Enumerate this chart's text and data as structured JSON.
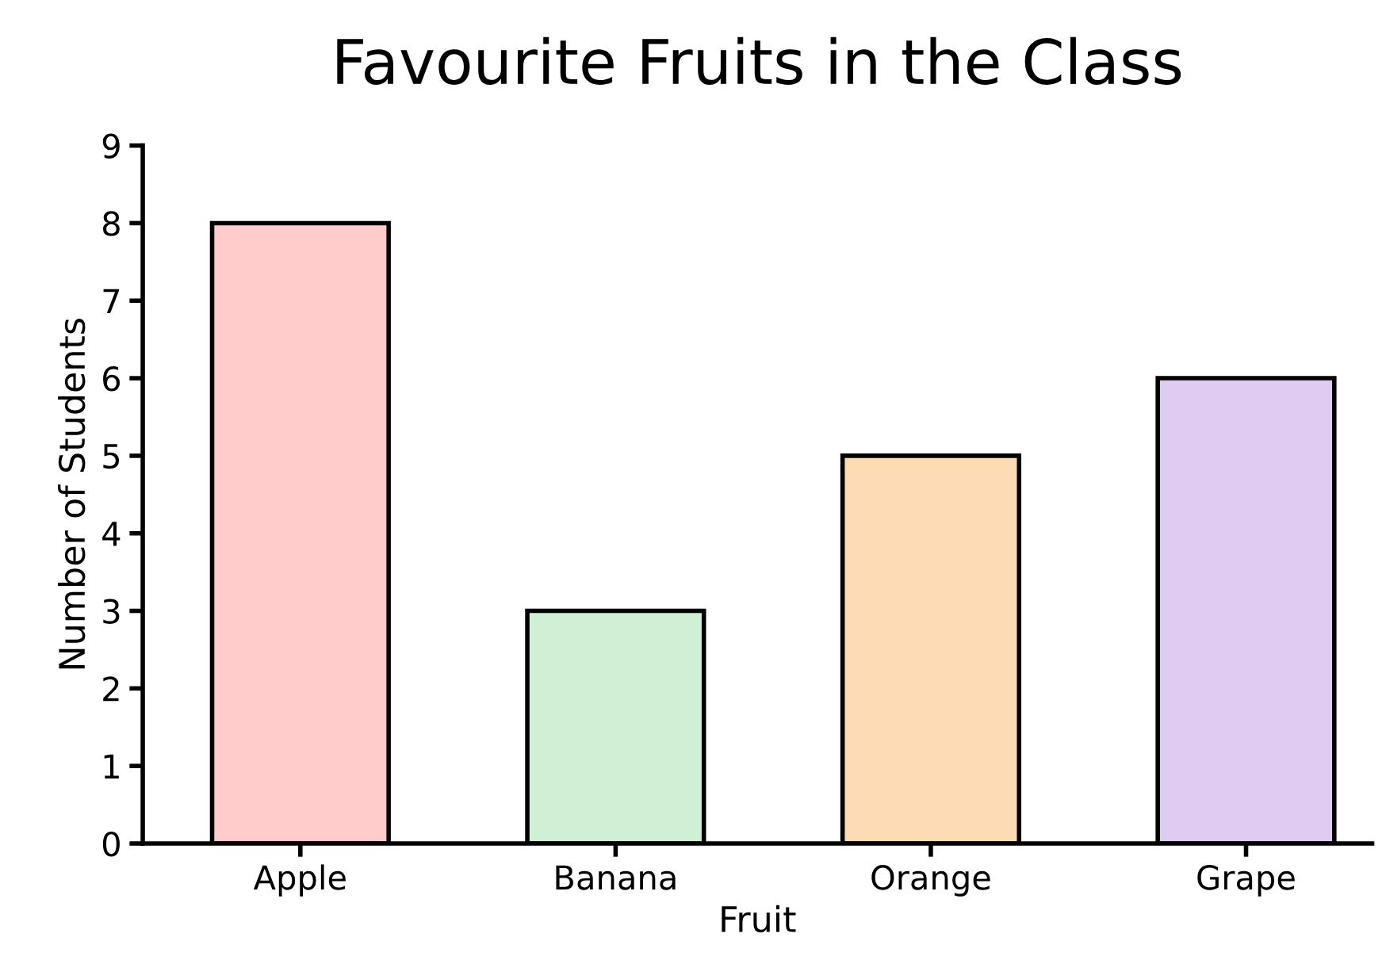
{
  "chart_data": {
    "type": "bar",
    "title": "Favourite Fruits in the Class",
    "xlabel": "Fruit",
    "ylabel": "Number of Students",
    "categories": [
      "Apple",
      "Banana",
      "Orange",
      "Grape"
    ],
    "values": [
      8,
      3,
      5,
      6
    ],
    "colors": [
      "#ffcccb",
      "#d0f0d6",
      "#fddcb5",
      "#e0ccf2"
    ],
    "ylim": [
      0,
      9
    ],
    "yticks": [
      0,
      1,
      2,
      3,
      4,
      5,
      6,
      7,
      8,
      9
    ],
    "grid": false,
    "legend": false
  }
}
